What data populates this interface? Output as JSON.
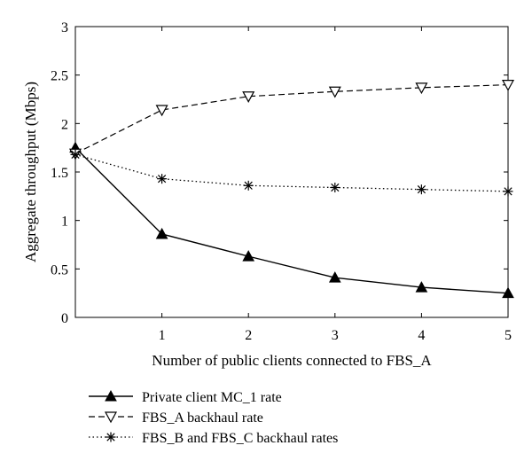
{
  "chart_data": {
    "type": "line",
    "title": "",
    "xlabel": "Number of public clients connected to FBS_A",
    "ylabel": "Aggregate throughput (Mbps)",
    "xlim": [
      0,
      5
    ],
    "ylim": [
      0,
      3
    ],
    "x_ticks": [
      "1",
      "2",
      "3",
      "4",
      "5"
    ],
    "y_ticks": [
      "0",
      "0.5",
      "1",
      "1.5",
      "2",
      "2.5",
      "3"
    ],
    "grid": false,
    "legend_position": "bottom",
    "x": [
      0,
      1,
      2,
      3,
      4,
      5
    ],
    "series": [
      {
        "name": "Private client MC_1 rate",
        "values": [
          1.75,
          0.86,
          0.63,
          0.41,
          0.31,
          0.25
        ],
        "line_style": "solid",
        "marker": "filled-triangle-up"
      },
      {
        "name": "FBS_A backhaul rate",
        "values": [
          1.69,
          2.14,
          2.28,
          2.33,
          2.37,
          2.4
        ],
        "line_style": "dashed",
        "marker": "open-triangle-down"
      },
      {
        "name": "FBS_B and FBS_C backhaul rates",
        "values": [
          1.68,
          1.43,
          1.36,
          1.34,
          1.32,
          1.3
        ],
        "line_style": "dotted",
        "marker": "asterisk"
      }
    ]
  }
}
